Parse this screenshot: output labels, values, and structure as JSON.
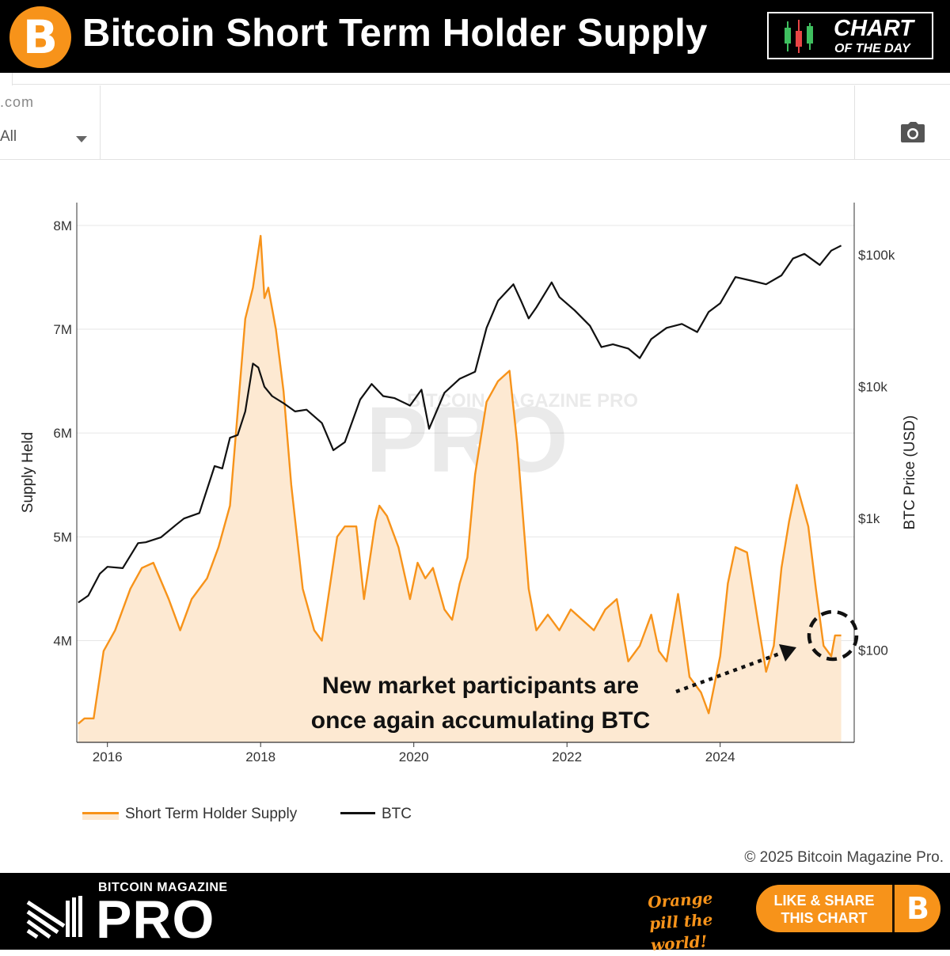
{
  "header": {
    "btc_symbol": "B",
    "title": "Bitcoin Short Term Holder Supply",
    "badge_line1": "CHART",
    "badge_line2": "OF THE DAY"
  },
  "toolbar": {
    "site_fragment": ".com",
    "range_value": "All",
    "camera_icon": "camera-icon"
  },
  "colors": {
    "sths_line": "#f7931a",
    "sths_fill": "#fde9d2",
    "btc_line": "#111111",
    "brand_orange": "#f7931a"
  },
  "chart_data": {
    "type": "line",
    "left_axis": {
      "label": "Supply Held",
      "ticks": [
        "4M",
        "5M",
        "6M",
        "7M",
        "8M"
      ],
      "tick_values": [
        4000000,
        5000000,
        6000000,
        7000000,
        8000000
      ],
      "range": [
        3020000,
        8220000
      ]
    },
    "right_axis": {
      "label": "BTC Price (USD)",
      "scale": "log",
      "ticks": [
        "$100",
        "$1k",
        "$10k",
        "$100k"
      ],
      "tick_values": [
        100,
        1000,
        10000,
        100000
      ],
      "range": [
        20,
        250000
      ]
    },
    "x_axis": {
      "ticks": [
        "2016",
        "2018",
        "2020",
        "2022",
        "2024"
      ],
      "tick_values": [
        2016,
        2018,
        2020,
        2022,
        2024
      ],
      "range": [
        2015.6,
        2025.75
      ]
    },
    "grid": true,
    "legend_position": "bottom-left",
    "annotation": {
      "line1": "New market participants are",
      "line2": "once again accumulating BTC"
    },
    "watermark": "BITCOIN MAGAZINE PRO",
    "series": [
      {
        "name": "Short Term Holder Supply",
        "axis": "left",
        "x": [
          2015.62,
          2015.7,
          2015.82,
          2015.95,
          2016.1,
          2016.3,
          2016.45,
          2016.6,
          2016.8,
          2016.95,
          2017.1,
          2017.3,
          2017.45,
          2017.6,
          2017.7,
          2017.8,
          2017.9,
          2018.0,
          2018.05,
          2018.1,
          2018.2,
          2018.3,
          2018.4,
          2018.55,
          2018.7,
          2018.8,
          2019.0,
          2019.1,
          2019.25,
          2019.35,
          2019.5,
          2019.55,
          2019.65,
          2019.8,
          2019.95,
          2020.05,
          2020.15,
          2020.25,
          2020.4,
          2020.5,
          2020.6,
          2020.7,
          2020.8,
          2020.95,
          2021.1,
          2021.25,
          2021.35,
          2021.5,
          2021.6,
          2021.75,
          2021.9,
          2022.05,
          2022.2,
          2022.35,
          2022.5,
          2022.65,
          2022.8,
          2022.95,
          2023.1,
          2023.2,
          2023.3,
          2023.45,
          2023.6,
          2023.75,
          2023.85,
          2024.0,
          2024.1,
          2024.2,
          2024.35,
          2024.5,
          2024.6,
          2024.7,
          2024.8,
          2024.9,
          2025.0,
          2025.15,
          2025.25,
          2025.35,
          2025.45,
          2025.5,
          2025.55,
          2025.58
        ],
        "values": [
          3200000,
          3250000,
          3250000,
          3900000,
          4100000,
          4500000,
          4700000,
          4750000,
          4400000,
          4100000,
          4400000,
          4600000,
          4900000,
          5300000,
          6200000,
          7100000,
          7400000,
          7900000,
          7300000,
          7400000,
          7000000,
          6400000,
          5500000,
          4500000,
          4100000,
          4000000,
          5000000,
          5100000,
          5100000,
          4400000,
          5150000,
          5300000,
          5200000,
          4900000,
          4400000,
          4750000,
          4600000,
          4700000,
          4300000,
          4200000,
          4550000,
          4800000,
          5600000,
          6300000,
          6500000,
          6600000,
          5900000,
          4500000,
          4100000,
          4250000,
          4100000,
          4300000,
          4200000,
          4100000,
          4300000,
          4400000,
          3800000,
          3950000,
          4250000,
          3900000,
          3800000,
          4450000,
          3650000,
          3500000,
          3300000,
          3850000,
          4550000,
          4900000,
          4850000,
          4150000,
          3700000,
          3950000,
          4700000,
          5150000,
          5500000,
          5100000,
          4500000,
          3950000,
          3850000,
          4050000,
          4050000,
          4050000
        ]
      },
      {
        "name": "BTC",
        "axis": "right",
        "x": [
          2015.62,
          2015.75,
          2015.9,
          2016.0,
          2016.2,
          2016.4,
          2016.5,
          2016.7,
          2016.9,
          2017.0,
          2017.2,
          2017.4,
          2017.5,
          2017.6,
          2017.7,
          2017.8,
          2017.9,
          2017.97,
          2018.05,
          2018.15,
          2018.3,
          2018.45,
          2018.6,
          2018.8,
          2018.95,
          2019.1,
          2019.3,
          2019.45,
          2019.6,
          2019.75,
          2019.95,
          2020.1,
          2020.2,
          2020.4,
          2020.6,
          2020.8,
          2020.95,
          2021.1,
          2021.3,
          2021.4,
          2021.5,
          2021.6,
          2021.8,
          2021.9,
          2022.1,
          2022.3,
          2022.45,
          2022.6,
          2022.8,
          2022.95,
          2023.1,
          2023.3,
          2023.5,
          2023.7,
          2023.85,
          2024.0,
          2024.2,
          2024.4,
          2024.6,
          2024.8,
          2024.95,
          2025.1,
          2025.3,
          2025.45,
          2025.58
        ],
        "values": [
          230,
          260,
          380,
          430,
          420,
          650,
          660,
          720,
          900,
          1000,
          1100,
          2500,
          2400,
          4100,
          4300,
          6500,
          15000,
          14000,
          10000,
          8500,
          7500,
          6500,
          6700,
          5300,
          3300,
          3800,
          8000,
          10500,
          8500,
          8200,
          7200,
          9500,
          4800,
          9000,
          11500,
          13000,
          28000,
          45000,
          60000,
          45000,
          33000,
          40000,
          62000,
          48000,
          38000,
          29000,
          20000,
          21000,
          19500,
          16500,
          23000,
          28000,
          30000,
          26000,
          37000,
          43000,
          68000,
          64000,
          60000,
          70000,
          94000,
          102000,
          84000,
          108000,
          118000
        ]
      }
    ]
  },
  "legend": {
    "sths_label": "Short Term Holder Supply",
    "btc_label": "BTC"
  },
  "copyright": "© 2025 Bitcoin Magazine Pro.",
  "footer": {
    "brand_small": "BITCOIN MAGAZINE",
    "brand_big": "PRO",
    "tagline": "Orange pill the world!",
    "cta_line1": "LIKE & SHARE",
    "cta_line2": "THIS CHART",
    "cta_symbol": "B"
  }
}
